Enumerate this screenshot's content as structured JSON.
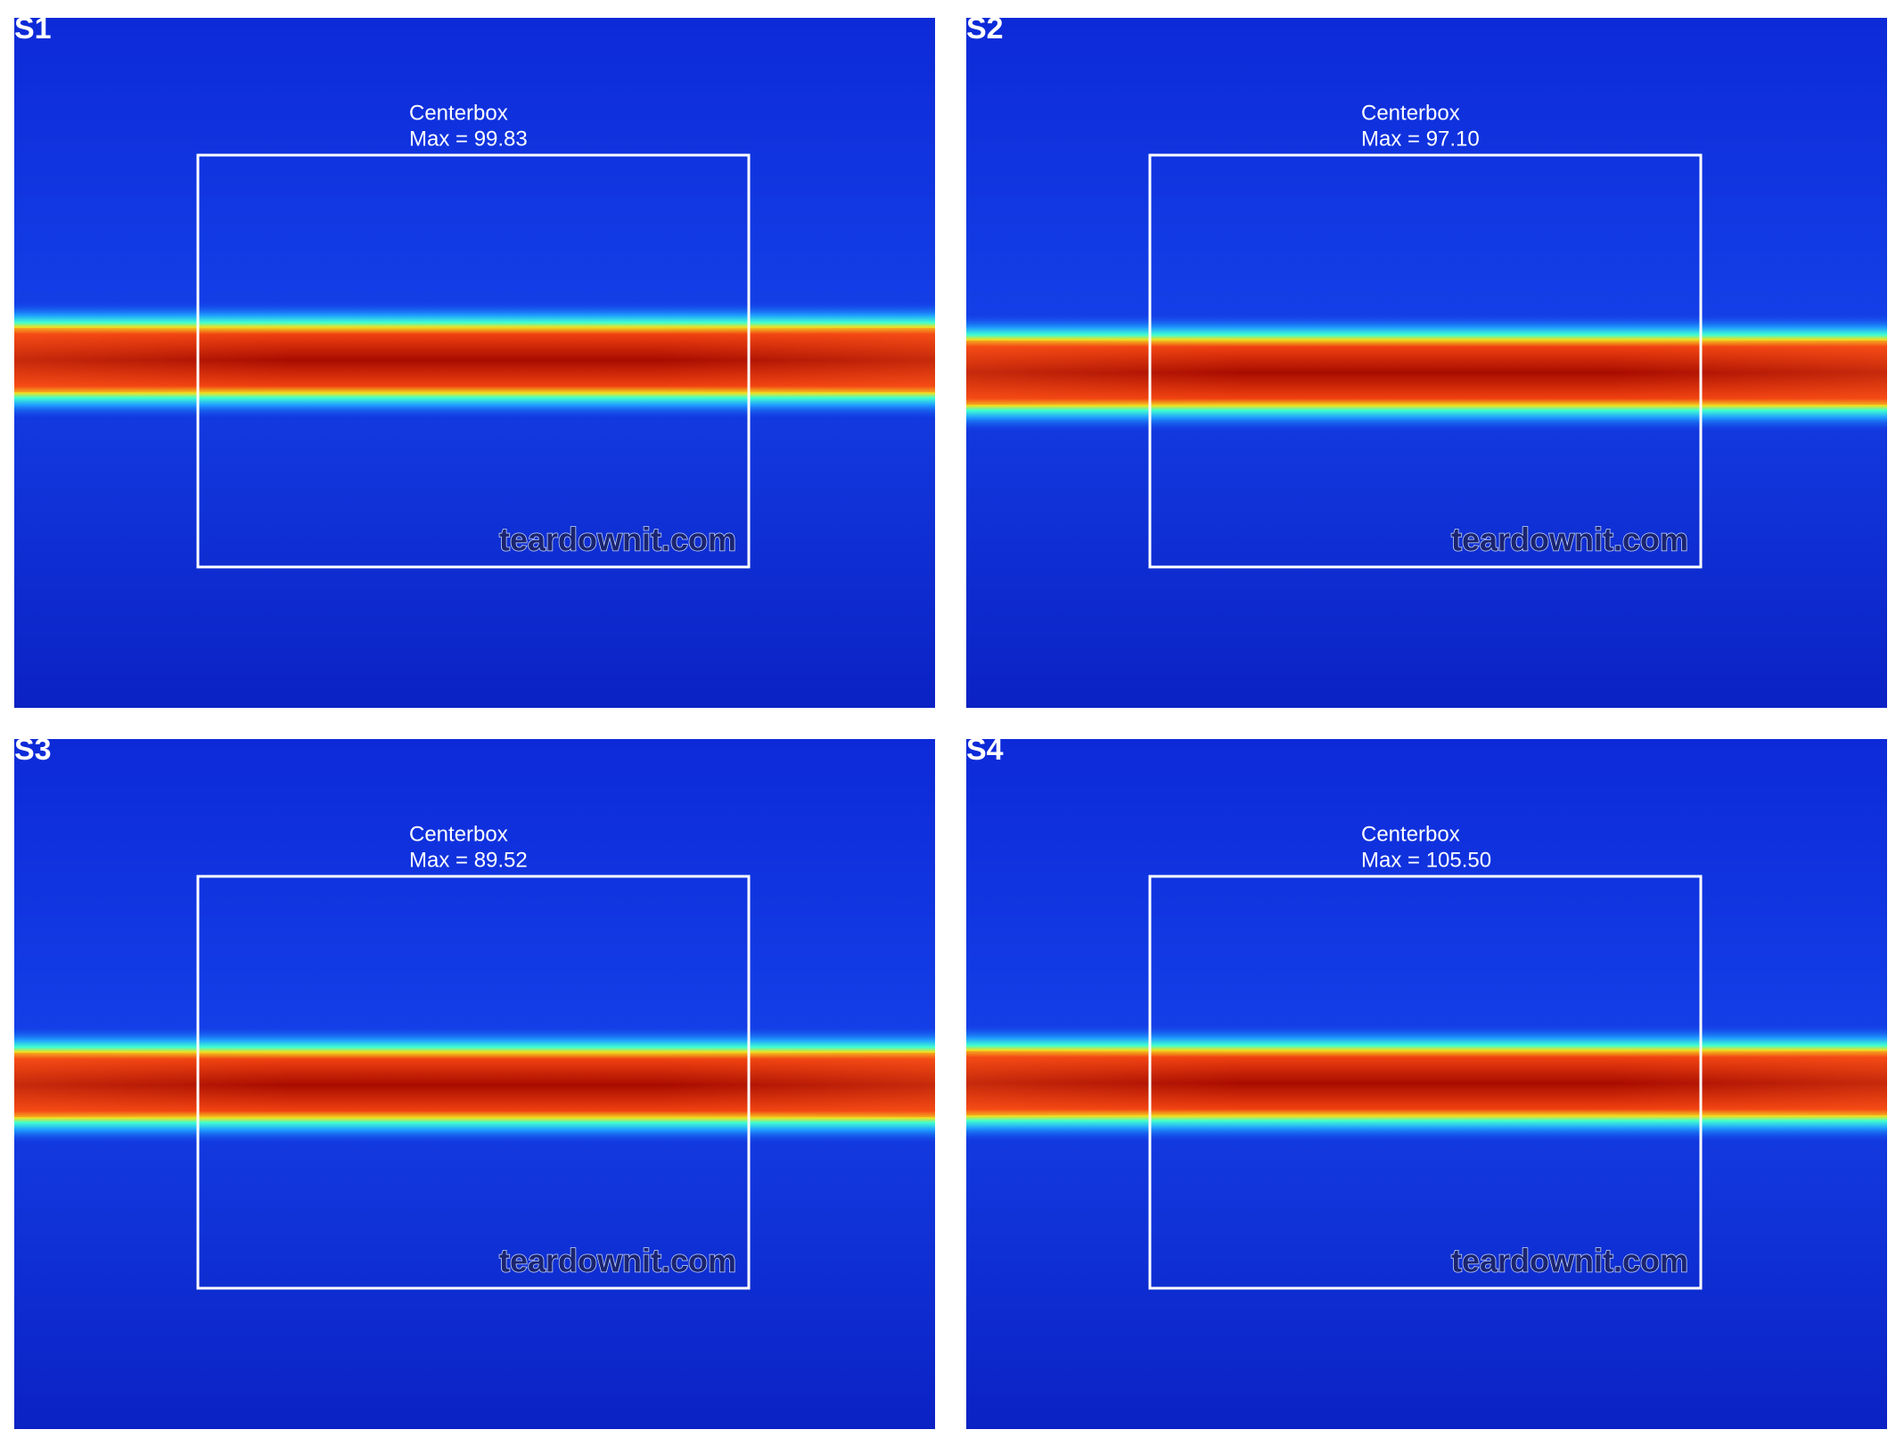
{
  "panels": [
    {
      "label": "S1",
      "box_title": "Centerbox",
      "max_label": "Max = 99.83",
      "watermark": "teardownit.com"
    },
    {
      "label": "S2",
      "box_title": "Centerbox",
      "max_label": "Max = 97.10",
      "watermark": "teardownit.com"
    },
    {
      "label": "S3",
      "box_title": "Centerbox",
      "max_label": "Max = 89.52",
      "watermark": "teardownit.com"
    },
    {
      "label": "S4",
      "box_title": "Centerbox",
      "max_label": "Max = 105.50",
      "watermark": "teardownit.com"
    }
  ]
}
